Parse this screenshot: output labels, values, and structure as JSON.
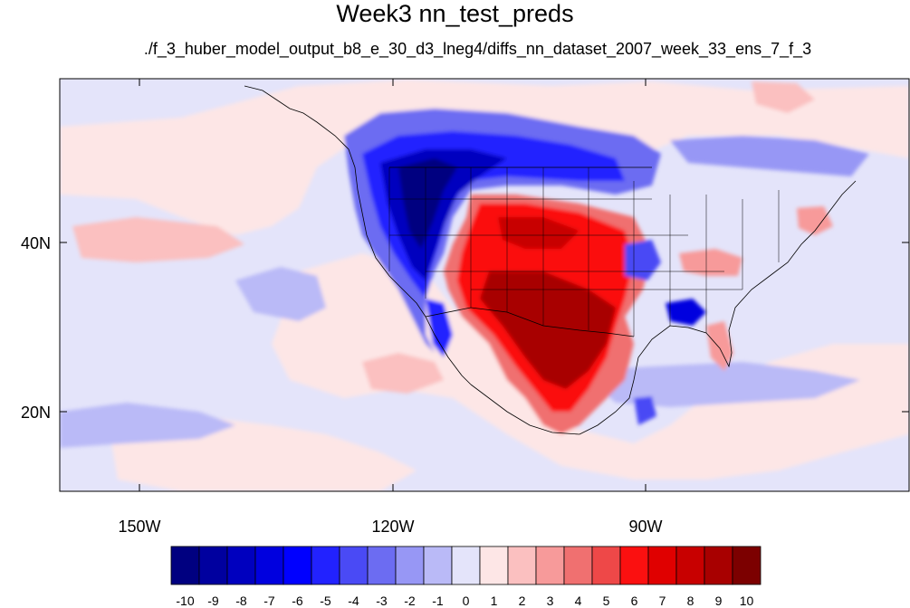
{
  "title": "Week3 nn_test_preds",
  "subtitle": "./f_3_huber_model_output_b8_e_30_d3_lneg4/diffs_nn_dataset_2007_week_33_ens_7_f_3",
  "axes": {
    "lon_ticks": [
      "150W",
      "120W",
      "90W"
    ],
    "lat_ticks": [
      "40N",
      "20N"
    ]
  },
  "colorbar": {
    "labels": [
      "-10",
      "-9",
      "-8",
      "-7",
      "-6",
      "-5",
      "-4",
      "-3",
      "-2",
      "-1",
      "0",
      "1",
      "2",
      "3",
      "4",
      "5",
      "6",
      "7",
      "8",
      "9",
      "10"
    ],
    "colors": [
      "#000080",
      "#00009f",
      "#0000bf",
      "#0000df",
      "#0000ff",
      "#2222ff",
      "#4a4af5",
      "#6c6cf2",
      "#9797f5",
      "#babaf7",
      "#e4e4fa",
      "#fde6e6",
      "#fbc0c0",
      "#f79a9a",
      "#f07070",
      "#ee4848",
      "#fb1010",
      "#e00000",
      "#c80000",
      "#a80000",
      "#7c0000"
    ]
  },
  "colors": {
    "background": "#e4e4fa",
    "land_outline": "#000000"
  }
}
